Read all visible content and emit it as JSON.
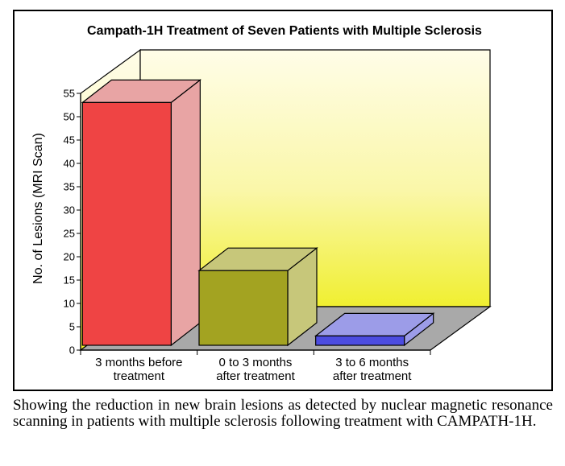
{
  "chart_data": {
    "type": "bar",
    "title": "Campath-1H Treatment of Seven Patients with Multiple Sclerosis",
    "xlabel": "",
    "ylabel": "No. of Lesions (MRI Scan)",
    "ylim": [
      0,
      55
    ],
    "yticks": [
      0,
      5,
      10,
      15,
      20,
      25,
      30,
      35,
      40,
      45,
      50,
      55
    ],
    "grid": false,
    "legend": "none",
    "categories": [
      [
        "3 months before",
        "treatment"
      ],
      [
        "0 to 3 months",
        "after treatment"
      ],
      [
        "3 to 6 months",
        "after treatment"
      ]
    ],
    "values": [
      52,
      16,
      2
    ],
    "colors": {
      "front": [
        "#ef4444",
        "#a3a321",
        "#4c4ce0"
      ],
      "side": [
        "#e8a4a4",
        "#c7c77a",
        "#9c9ce8"
      ],
      "top": [
        "#e8a4a4",
        "#c7c77a",
        "#9c9ce8"
      ],
      "wall_top": "#fffde0",
      "wall_bottom": "#f2f23a",
      "floor": "#a9a9a9"
    }
  },
  "caption": "Showing the reduction in new brain lesions as detected by nuclear magnetic resonance scanning in patients with multiple sclerosis following treatment with CAMPATH-1H."
}
